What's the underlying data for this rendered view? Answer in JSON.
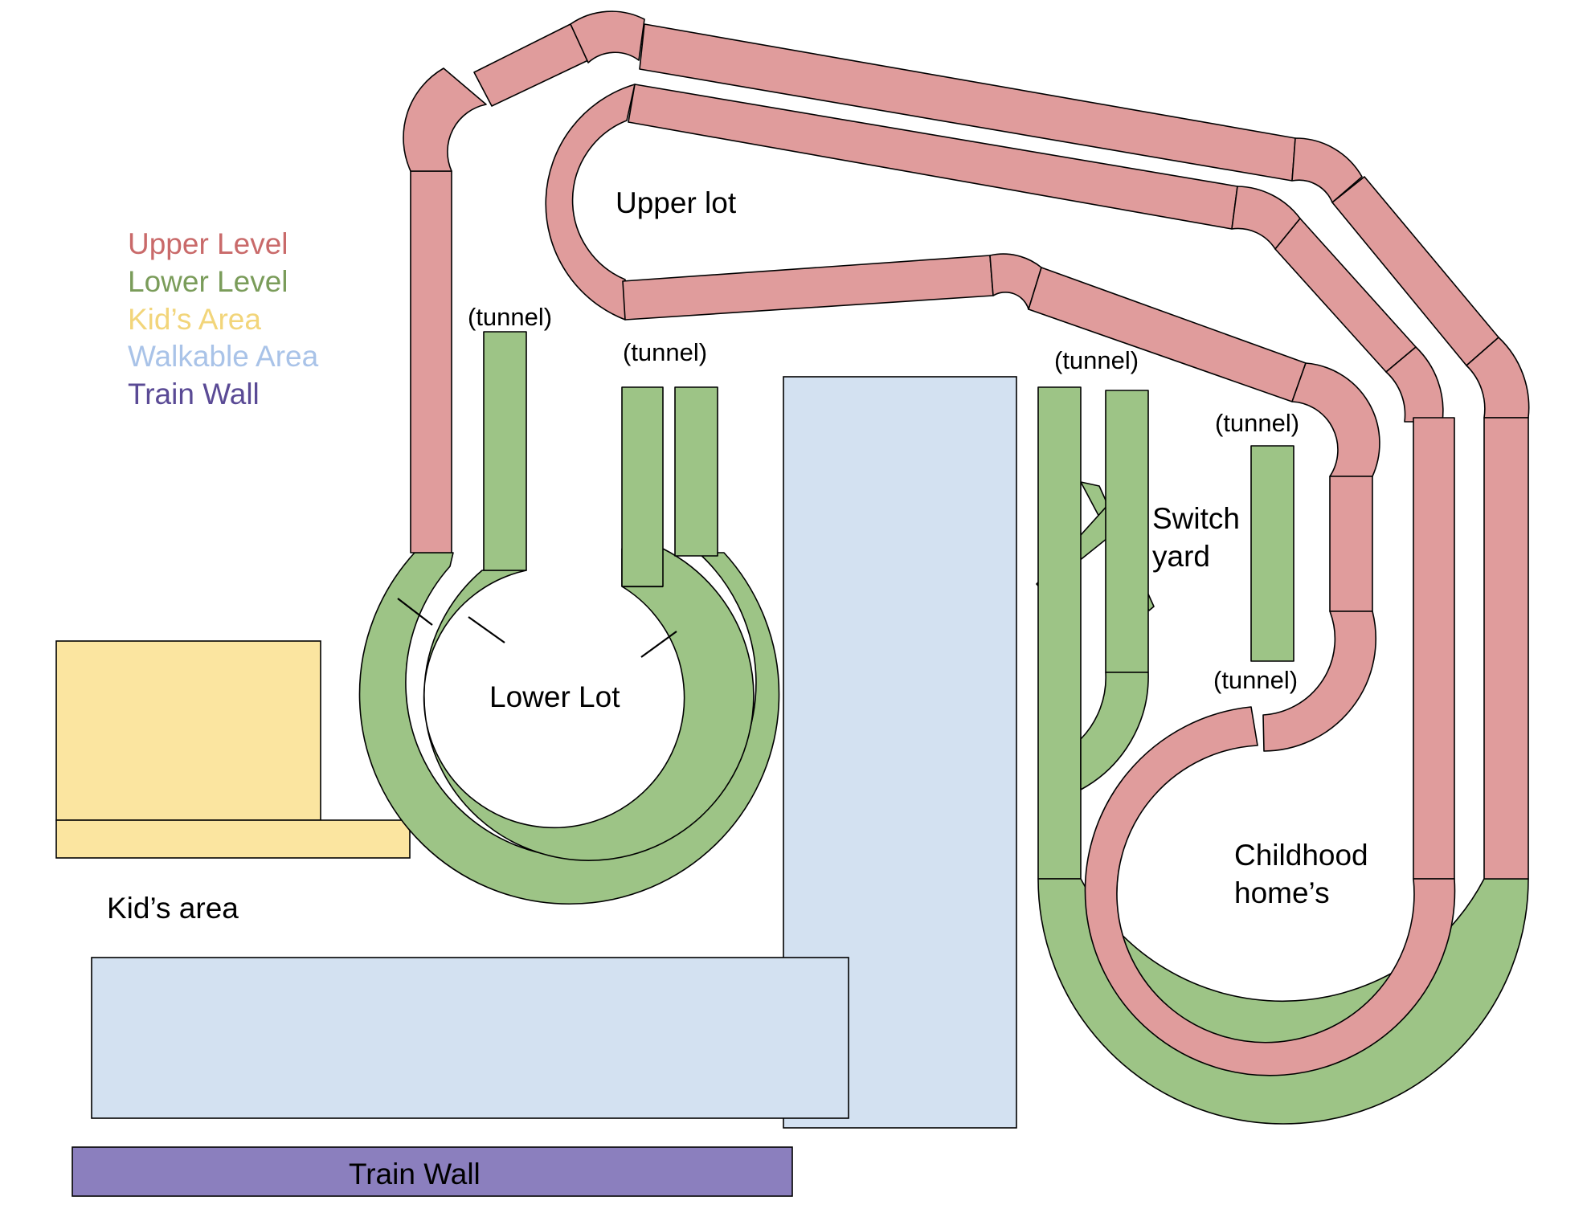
{
  "legend": {
    "upper_level": "Upper Level",
    "lower_level": "Lower Level",
    "kids_area": "Kid’s Area",
    "walkable_area": "Walkable Area",
    "train_wall": "Train Wall"
  },
  "labels": {
    "upper_lot": "Upper lot",
    "lower_lot": "Lower Lot",
    "kids_area": "Kid’s area",
    "train_wall": "Train Wall",
    "switch_yard_line1": "Switch",
    "switch_yard_line2": "yard",
    "childhood_line1": "Childhood",
    "childhood_line2": "home’s",
    "tunnel_1": "(tunnel)",
    "tunnel_2": "(tunnel)",
    "tunnel_3": "(tunnel)",
    "tunnel_4": "(tunnel)",
    "tunnel_5": "(tunnel)"
  },
  "colors": {
    "upper_level": "#e09c9c",
    "upper_level_text": "#c96a6a",
    "lower_level": "#9dc486",
    "lower_level_text": "#7a9c5a",
    "kids_area": "#fbe5a0",
    "kids_area_text": "#f2d57a",
    "walkable_area": "#d3e1f1",
    "walkable_area_text": "#a9c3e8",
    "train_wall": "#8b7fbe",
    "train_wall_text": "#5a4a95"
  }
}
